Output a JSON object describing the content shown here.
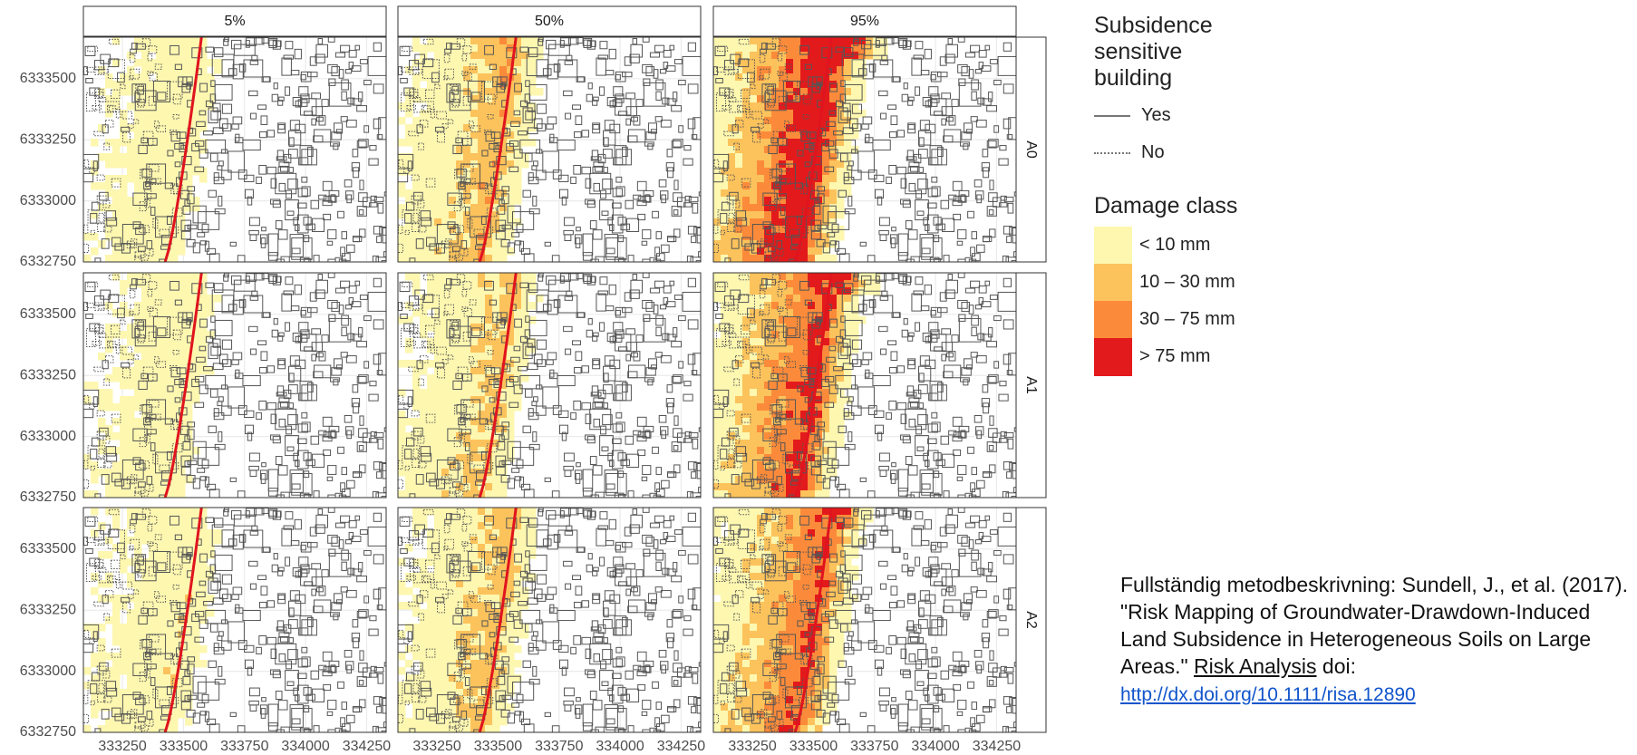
{
  "map": {
    "facets": {
      "columns": [
        "5%",
        "50%",
        "95%"
      ],
      "rows": [
        "A0",
        "A1",
        "A2"
      ]
    },
    "axes": {
      "xlim": [
        333090,
        334330
      ],
      "xticks": [
        333250,
        333500,
        333750,
        334000,
        334250
      ],
      "ylim": [
        6332750,
        6333670
      ],
      "yticks": [
        6332750,
        6333000,
        6333250,
        6333500
      ]
    },
    "legend": {
      "building_title": "Subsidence sensitive building",
      "building_items": [
        "Yes",
        "No"
      ],
      "damage_title": "Damage class",
      "damage_items": [
        {
          "label": "< 10 mm",
          "color": "#fdf7b0"
        },
        {
          "label": "10 – 30 mm",
          "color": "#fcc35c"
        },
        {
          "label": "30 – 75 mm",
          "color": "#fb8b3a"
        },
        {
          "label": "> 75 mm",
          "color": "#e31a1c"
        }
      ]
    },
    "citation": {
      "text": "Fullständig metodbeskrivning: Sundell, J., et al. (2017). \"Risk Mapping of Groundwater-Drawdown-Induced Land Subsidence in Heterogeneous Soils on Large Areas.\"",
      "journal": "Risk Analysis",
      "doi_prefix": "doi:",
      "url": "http://dx.doi.org/10.1111/risa.12890"
    }
  }
}
